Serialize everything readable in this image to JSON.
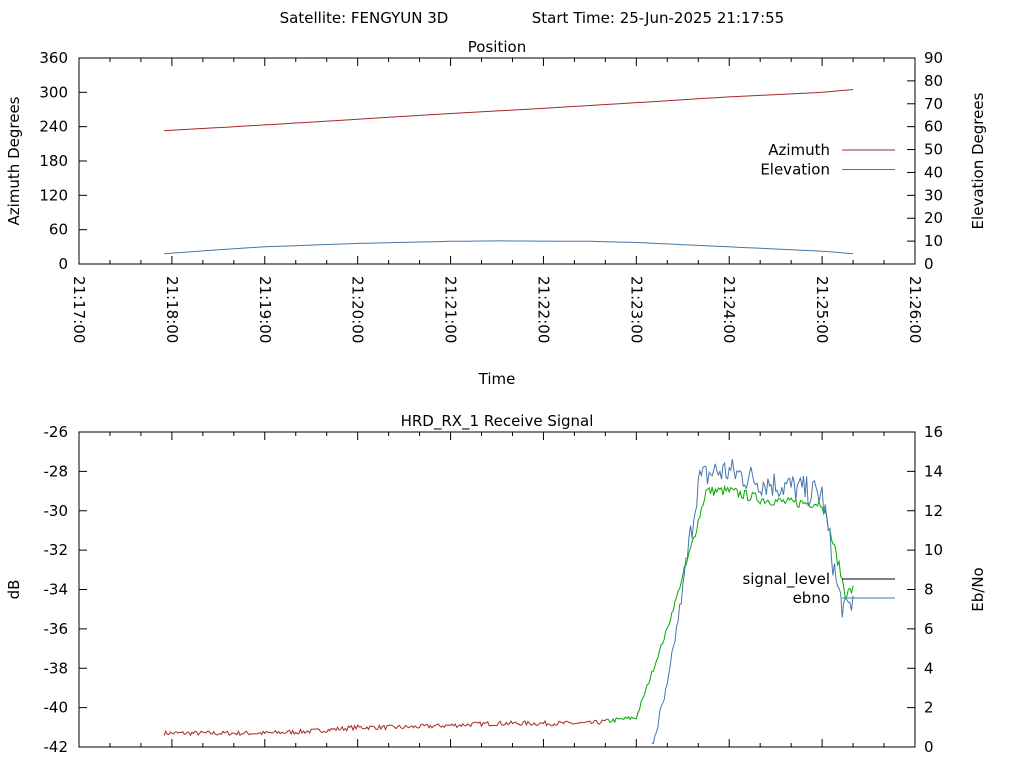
{
  "header": {
    "satellite_label": "Satellite: FENGYUN 3D",
    "start_label": "Start Time: 25-Jun-2025 21:17:55"
  },
  "chart_data": [
    {
      "type": "line",
      "title": "Position",
      "xlabel": "Time",
      "ylabel": "Azimuth Degrees",
      "y2label": "Elevation Degrees",
      "xlim": [
        "21:17:00",
        "21:26:00"
      ],
      "x_ticks": [
        "21:17:00",
        "21:18:00",
        "21:19:00",
        "21:20:00",
        "21:21:00",
        "21:22:00",
        "21:23:00",
        "21:24:00",
        "21:25:00",
        "21:26:00"
      ],
      "ylim": [
        0,
        360
      ],
      "y_ticks": [
        "0",
        "60",
        "120",
        "180",
        "240",
        "300",
        "360"
      ],
      "y2lim": [
        0,
        90
      ],
      "y2_ticks": [
        "0",
        "10",
        "20",
        "30",
        "40",
        "50",
        "60",
        "70",
        "80",
        "90"
      ],
      "legend_position": "right",
      "grid": false,
      "series": [
        {
          "name": "Azimuth",
          "axis": "left",
          "color": "#a52a2a",
          "x": [
            "21:17:55",
            "21:19:00",
            "21:20:00",
            "21:21:00",
            "21:22:00",
            "21:23:00",
            "21:24:00",
            "21:25:00",
            "21:25:20"
          ],
          "values": [
            233,
            243,
            253,
            263,
            272,
            282,
            292,
            300,
            305
          ]
        },
        {
          "name": "Elevation",
          "axis": "right",
          "color": "#4477aa",
          "x": [
            "21:17:55",
            "21:18:30",
            "21:19:00",
            "21:20:00",
            "21:21:00",
            "21:21:30",
            "21:22:00",
            "21:22:30",
            "21:23:00",
            "21:24:00",
            "21:25:00",
            "21:25:20"
          ],
          "values": [
            4.5,
            6.2,
            7.5,
            9.0,
            9.9,
            10.1,
            10.0,
            9.9,
            9.4,
            7.5,
            5.6,
            4.5
          ]
        }
      ]
    },
    {
      "type": "line",
      "title": "HRD_RX_1 Receive Signal",
      "ylabel": "dB",
      "y2label": "Eb/No",
      "xlim": [
        "21:17:00",
        "21:26:00"
      ],
      "ylim": [
        -42,
        -26
      ],
      "y_ticks": [
        "-42",
        "-40",
        "-38",
        "-36",
        "-34",
        "-32",
        "-30",
        "-28",
        "-26"
      ],
      "y2lim": [
        0,
        16
      ],
      "y2_ticks": [
        "0",
        "2",
        "4",
        "6",
        "8",
        "10",
        "12",
        "14",
        "16"
      ],
      "legend_position": "right",
      "grid": false,
      "series": [
        {
          "name": "signal_level",
          "axis": "left",
          "color": "#a52a2a",
          "color_high": "#00aa00",
          "x": [
            "21:17:55",
            "21:18:30",
            "21:19:00",
            "21:19:30",
            "21:20:00",
            "21:20:30",
            "21:21:00",
            "21:21:30",
            "21:22:00",
            "21:22:30",
            "21:23:00",
            "21:23:20",
            "21:23:35",
            "21:23:45",
            "21:24:00",
            "21:24:20",
            "21:24:40",
            "21:25:00",
            "21:25:10",
            "21:25:15",
            "21:25:20"
          ],
          "values": [
            -41.3,
            -41.3,
            -41.3,
            -41.2,
            -41.0,
            -41.0,
            -40.9,
            -40.8,
            -40.8,
            -40.8,
            -40.5,
            -36.0,
            -32.0,
            -29.0,
            -29.0,
            -29.4,
            -29.6,
            -29.6,
            -32.5,
            -34.2,
            -34.0
          ]
        },
        {
          "name": "ebno",
          "axis": "right",
          "color": "#4477aa",
          "x": [
            "21:23:10",
            "21:23:20",
            "21:23:30",
            "21:23:40",
            "21:23:50",
            "21:24:00",
            "21:24:20",
            "21:24:40",
            "21:25:00",
            "21:25:10",
            "21:25:15",
            "21:25:20"
          ],
          "values": [
            0.0,
            3.0,
            8.0,
            13.5,
            14.0,
            14.0,
            13.5,
            13.2,
            12.8,
            8.0,
            6.8,
            7.5
          ]
        }
      ]
    }
  ]
}
